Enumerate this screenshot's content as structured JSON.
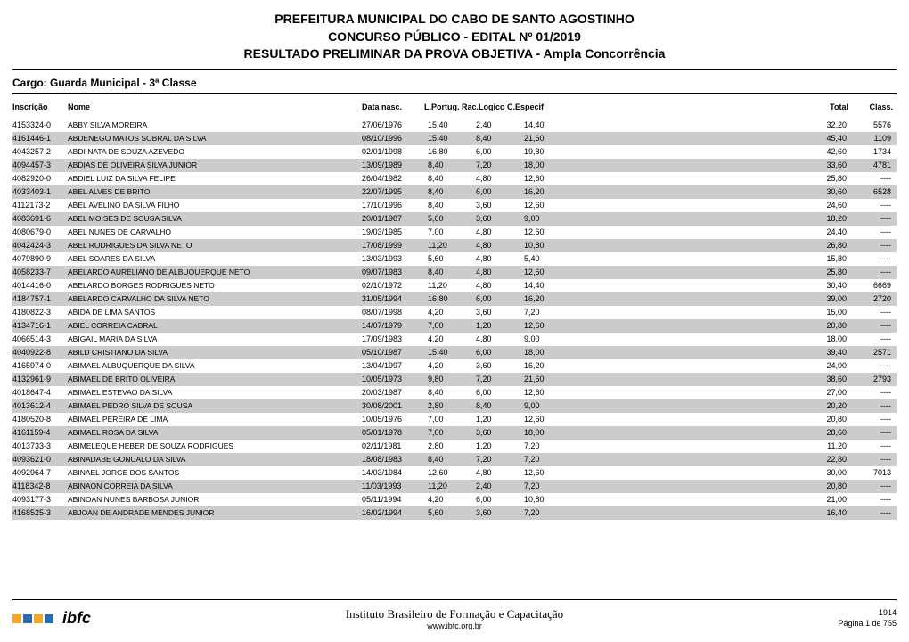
{
  "header": {
    "line1": "PREFEITURA MUNICIPAL DO CABO DE SANTO AGOSTINHO",
    "line2": "CONCURSO PÚBLICO - EDITAL Nº 01/2019",
    "line3": "RESULTADO PRELIMINAR DA PROVA OBJETIVA - Ampla Concorrência"
  },
  "cargo": "Cargo: Guarda Municipal - 3ª Classe",
  "columns": {
    "inscricao": "Inscrição",
    "nome": "Nome",
    "data_nasc": "Data nasc.",
    "scores_combined": "L.Portug. Rac.Logico C.Especif",
    "total": "Total",
    "class": "Class."
  },
  "rows": [
    {
      "insc": "4153324-0",
      "nome": "ABBY SILVA MOREIRA",
      "date": "27/06/1976",
      "s1": "15,40",
      "s2": "2,40",
      "s3": "14,40",
      "total": "32,20",
      "class": "5576",
      "shaded": false
    },
    {
      "insc": "4161446-1",
      "nome": "ABDENEGO MATOS SOBRAL DA SILVA",
      "date": "08/10/1996",
      "s1": "15,40",
      "s2": "8,40",
      "s3": "21,60",
      "total": "45,40",
      "class": "1109",
      "shaded": true
    },
    {
      "insc": "4043257-2",
      "nome": "ABDI NATA DE SOUZA AZEVEDO",
      "date": "02/01/1998",
      "s1": "16,80",
      "s2": "6,00",
      "s3": "19,80",
      "total": "42,60",
      "class": "1734",
      "shaded": false
    },
    {
      "insc": "4094457-3",
      "nome": "ABDIAS DE OLIVEIRA SILVA JUNIOR",
      "date": "13/09/1989",
      "s1": "8,40",
      "s2": "7,20",
      "s3": "18,00",
      "total": "33,60",
      "class": "4781",
      "shaded": true
    },
    {
      "insc": "4082920-0",
      "nome": "ABDIEL LUIZ DA SILVA FELIPE",
      "date": "26/04/1982",
      "s1": "8,40",
      "s2": "4,80",
      "s3": "12,60",
      "total": "25,80",
      "class": "----",
      "shaded": false
    },
    {
      "insc": "4033403-1",
      "nome": "ABEL ALVES DE BRITO",
      "date": "22/07/1995",
      "s1": "8,40",
      "s2": "6,00",
      "s3": "16,20",
      "total": "30,60",
      "class": "6528",
      "shaded": true
    },
    {
      "insc": "4112173-2",
      "nome": "ABEL AVELINO DA SILVA FILHO",
      "date": "17/10/1996",
      "s1": "8,40",
      "s2": "3,60",
      "s3": "12,60",
      "total": "24,60",
      "class": "----",
      "shaded": false
    },
    {
      "insc": "4083691-6",
      "nome": "ABEL MOISES DE SOUSA SILVA",
      "date": "20/01/1987",
      "s1": "5,60",
      "s2": "3,60",
      "s3": "9,00",
      "total": "18,20",
      "class": "----",
      "shaded": true
    },
    {
      "insc": "4080679-0",
      "nome": "ABEL NUNES DE CARVALHO",
      "date": "19/03/1985",
      "s1": "7,00",
      "s2": "4,80",
      "s3": "12,60",
      "total": "24,40",
      "class": "----",
      "shaded": false
    },
    {
      "insc": "4042424-3",
      "nome": "ABEL RODRIGUES DA SILVA NETO",
      "date": "17/08/1999",
      "s1": "11,20",
      "s2": "4,80",
      "s3": "10,80",
      "total": "26,80",
      "class": "----",
      "shaded": true
    },
    {
      "insc": "4079890-9",
      "nome": "ABEL SOARES DA SILVA",
      "date": "13/03/1993",
      "s1": "5,60",
      "s2": "4,80",
      "s3": "5,40",
      "total": "15,80",
      "class": "----",
      "shaded": false
    },
    {
      "insc": "4058233-7",
      "nome": "ABELARDO AURELIANO DE ALBUQUERQUE NETO",
      "date": "09/07/1983",
      "s1": "8,40",
      "s2": "4,80",
      "s3": "12,60",
      "total": "25,80",
      "class": "----",
      "shaded": true
    },
    {
      "insc": "4014416-0",
      "nome": "ABELARDO BORGES RODRIGUES NETO",
      "date": "02/10/1972",
      "s1": "11,20",
      "s2": "4,80",
      "s3": "14,40",
      "total": "30,40",
      "class": "6669",
      "shaded": false
    },
    {
      "insc": "4184757-1",
      "nome": "ABELARDO CARVALHO DA SILVA NETO",
      "date": "31/05/1994",
      "s1": "16,80",
      "s2": "6,00",
      "s3": "16,20",
      "total": "39,00",
      "class": "2720",
      "shaded": true
    },
    {
      "insc": "4180822-3",
      "nome": "ABIDA DE LIMA SANTOS",
      "date": "08/07/1998",
      "s1": "4,20",
      "s2": "3,60",
      "s3": "7,20",
      "total": "15,00",
      "class": "----",
      "shaded": false
    },
    {
      "insc": "4134716-1",
      "nome": "ABIEL CORREIA CABRAL",
      "date": "14/07/1979",
      "s1": "7,00",
      "s2": "1,20",
      "s3": "12,60",
      "total": "20,80",
      "class": "----",
      "shaded": true
    },
    {
      "insc": "4066514-3",
      "nome": "ABIGAIL MARIA DA SILVA",
      "date": "17/09/1983",
      "s1": "4,20",
      "s2": "4,80",
      "s3": "9,00",
      "total": "18,00",
      "class": "----",
      "shaded": false
    },
    {
      "insc": "4040922-8",
      "nome": "ABILD CRISTIANO DA SILVA",
      "date": "05/10/1987",
      "s1": "15,40",
      "s2": "6,00",
      "s3": "18,00",
      "total": "39,40",
      "class": "2571",
      "shaded": true
    },
    {
      "insc": "4165974-0",
      "nome": "ABIMAEL ALBUQUERQUE DA SILVA",
      "date": "13/04/1997",
      "s1": "4,20",
      "s2": "3,60",
      "s3": "16,20",
      "total": "24,00",
      "class": "----",
      "shaded": false
    },
    {
      "insc": "4132961-9",
      "nome": "ABIMAEL DE BRITO OLIVEIRA",
      "date": "10/05/1973",
      "s1": "9,80",
      "s2": "7,20",
      "s3": "21,60",
      "total": "38,60",
      "class": "2793",
      "shaded": true
    },
    {
      "insc": "4018647-4",
      "nome": "ABIMAEL ESTEVAO DA SILVA",
      "date": "20/03/1987",
      "s1": "8,40",
      "s2": "6,00",
      "s3": "12,60",
      "total": "27,00",
      "class": "----",
      "shaded": false
    },
    {
      "insc": "4013612-4",
      "nome": "ABIMAEL PEDRO SILVA DE SOUSA",
      "date": "30/08/2001",
      "s1": "2,80",
      "s2": "8,40",
      "s3": "9,00",
      "total": "20,20",
      "class": "----",
      "shaded": true
    },
    {
      "insc": "4180520-8",
      "nome": "ABIMAEL PEREIRA DE LIMA",
      "date": "10/05/1976",
      "s1": "7,00",
      "s2": "1,20",
      "s3": "12,60",
      "total": "20,80",
      "class": "----",
      "shaded": false
    },
    {
      "insc": "4161159-4",
      "nome": "ABIMAEL ROSA DA SILVA",
      "date": "05/01/1978",
      "s1": "7,00",
      "s2": "3,60",
      "s3": "18,00",
      "total": "28,60",
      "class": "----",
      "shaded": true
    },
    {
      "insc": "4013733-3",
      "nome": "ABIMELEQUE HEBER DE SOUZA RODRIGUES",
      "date": "02/11/1981",
      "s1": "2,80",
      "s2": "1,20",
      "s3": "7,20",
      "total": "11,20",
      "class": "----",
      "shaded": false
    },
    {
      "insc": "4093621-0",
      "nome": "ABINADABE GONCALO DA SILVA",
      "date": "18/08/1983",
      "s1": "8,40",
      "s2": "7,20",
      "s3": "7,20",
      "total": "22,80",
      "class": "----",
      "shaded": true
    },
    {
      "insc": "4092964-7",
      "nome": "ABINAEL JORGE DOS SANTOS",
      "date": "14/03/1984",
      "s1": "12,60",
      "s2": "4,80",
      "s3": "12,60",
      "total": "30,00",
      "class": "7013",
      "shaded": false
    },
    {
      "insc": "4118342-8",
      "nome": "ABINAON CORREIA DA SILVA",
      "date": "11/03/1993",
      "s1": "11,20",
      "s2": "2,40",
      "s3": "7,20",
      "total": "20,80",
      "class": "----",
      "shaded": true
    },
    {
      "insc": "4093177-3",
      "nome": "ABINOAN NUNES BARBOSA JUNIOR",
      "date": "05/11/1994",
      "s1": "4,20",
      "s2": "6,00",
      "s3": "10,80",
      "total": "21,00",
      "class": "----",
      "shaded": false
    },
    {
      "insc": "4168525-3",
      "nome": "ABJOAN DE ANDRADE MENDES JUNIOR",
      "date": "16/02/1994",
      "s1": "5,60",
      "s2": "3,60",
      "s3": "7,20",
      "total": "16,40",
      "class": "----",
      "shaded": true
    }
  ],
  "footer": {
    "institute": "Instituto Brasileiro de Formação e Capacitação",
    "url": "www.ibfc.org.br",
    "stamp": "1914",
    "page": "Página 1 de 755",
    "logo_text": "ibfc",
    "logo_colors": [
      "#f5a623",
      "#2b6cb0",
      "#f5a623",
      "#2b6cb0"
    ]
  },
  "style": {
    "shaded_bg": "#cccccc",
    "page_bg": "#ffffff",
    "text_color": "#000000",
    "header_fontsize": 14,
    "row_fontsize": 9
  }
}
